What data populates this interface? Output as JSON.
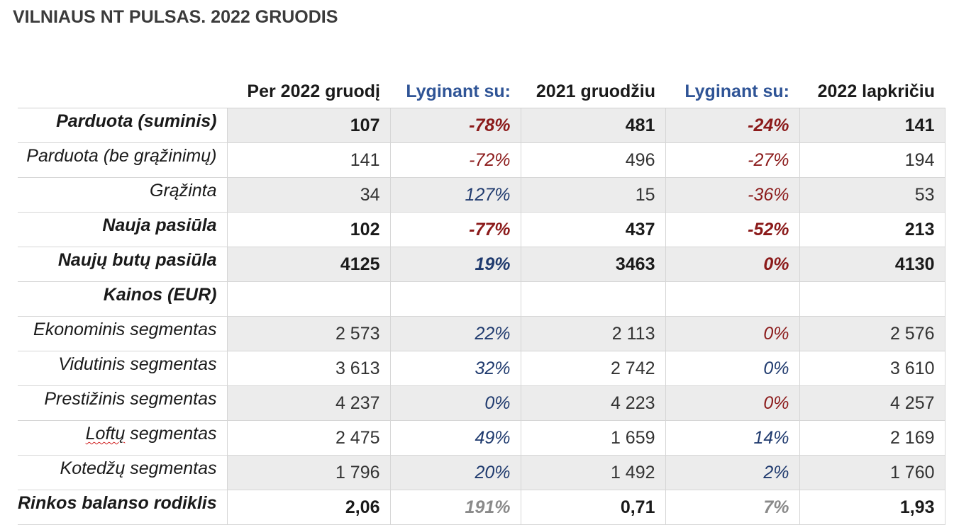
{
  "title": "VILNIAUS NT PULSAS. 2022 GRUODIS",
  "headers": {
    "col1": "Per 2022 gruodį",
    "col2": "Lyginant su:",
    "col3": "2021 gruodžiu",
    "col4": "Lyginant su:",
    "col5": "2022 lapkričiu"
  },
  "rows": [
    {
      "label": "Parduota (suminis)",
      "v1": "107",
      "p1": "-78%",
      "v2": "481",
      "p2": "-24%",
      "v3": "141"
    },
    {
      "label": "Parduota (be grąžinimų)",
      "v1": "141",
      "p1": "-72%",
      "v2": "496",
      "p2": "-27%",
      "v3": "194"
    },
    {
      "label": "Grąžinta",
      "v1": "34",
      "p1": "127%",
      "v2": "15",
      "p2": "-36%",
      "v3": "53"
    },
    {
      "label": "Nauja pasiūla",
      "v1": "102",
      "p1": "-77%",
      "v2": "437",
      "p2": "-52%",
      "v3": "213"
    },
    {
      "label": "Naujų butų pasiūla",
      "v1": "4125",
      "p1": "19%",
      "v2": "3463",
      "p2": "0%",
      "v3": "4130"
    },
    {
      "label": "Kainos (EUR)",
      "v1": "",
      "p1": "",
      "v2": "",
      "p2": "",
      "v3": ""
    },
    {
      "label": "Ekonominis segmentas",
      "v1": "2 573",
      "p1": "22%",
      "v2": "2 113",
      "p2": "0%",
      "v3": "2 576"
    },
    {
      "label": "Vidutinis segmentas",
      "v1": "3 613",
      "p1": "32%",
      "v2": "2 742",
      "p2": "0%",
      "v3": "3 610"
    },
    {
      "label": "Prestižinis segmentas",
      "v1": "4 237",
      "p1": "0%",
      "v2": "4 223",
      "p2": "0%",
      "v3": "4 257"
    },
    {
      "label_word": "Loftų",
      "label_rest": " segmentas",
      "v1": "2 475",
      "p1": "49%",
      "v2": "1 659",
      "p2": "14%",
      "v3": "2 169"
    },
    {
      "label": "Kotedžų segmentas",
      "v1": "1 796",
      "p1": "20%",
      "v2": "1 492",
      "p2": "2%",
      "v3": "1 760"
    },
    {
      "label": "Rinkos balanso rodiklis",
      "v1": "2,06",
      "p1": "191%",
      "v2": "0,71",
      "p2": "7%",
      "v3": "1,93"
    }
  ],
  "colors": {
    "positive": "#1f3a6e",
    "negative": "#8b1a1a",
    "neutral": "#8a8a8a",
    "header_compare": "#2f5496",
    "row_shade": "#ececec"
  }
}
